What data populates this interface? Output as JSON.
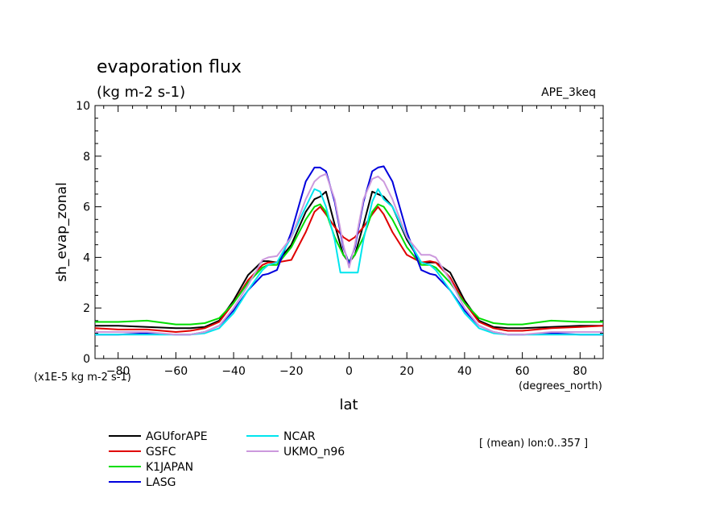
{
  "chart_data": {
    "type": "line",
    "title": "evaporation flux",
    "subtitle": "(kg m-2 s-1)",
    "experiment": "APE_3keq",
    "ylabel": "sh_evap_zonal",
    "xlabel": "lat",
    "xunits": "(degrees_north)",
    "yunits": "(x1E-5 kg m-2 s-1)",
    "note": "[ (mean) lon:0..357 ]",
    "xlim": [
      -88,
      88
    ],
    "ylim": [
      0,
      10
    ],
    "xticks": [
      -80,
      -60,
      -40,
      -20,
      0,
      20,
      40,
      60,
      80
    ],
    "yticks": [
      0,
      2,
      4,
      6,
      8,
      10
    ],
    "grid": false,
    "legend_position": "bottom-left",
    "series": [
      {
        "name": "AGUforAPE",
        "color": "#000000",
        "x": [
          -88,
          -80,
          -70,
          -60,
          -55,
          -50,
          -45,
          -40,
          -35,
          -30,
          -28,
          -25,
          -20,
          -15,
          -12,
          -10,
          -8,
          -5,
          -2,
          0,
          2,
          5,
          8,
          10,
          12,
          15,
          20,
          25,
          28,
          30,
          35,
          40,
          45,
          50,
          55,
          60,
          70,
          80,
          88
        ],
        "y": [
          1.3,
          1.3,
          1.25,
          1.2,
          1.2,
          1.25,
          1.5,
          2.3,
          3.3,
          3.85,
          3.85,
          3.8,
          4.5,
          5.8,
          6.3,
          6.4,
          6.6,
          5.3,
          4.1,
          3.8,
          4.1,
          5.3,
          6.6,
          6.5,
          6.4,
          6.0,
          4.7,
          3.8,
          3.8,
          3.8,
          3.4,
          2.3,
          1.5,
          1.25,
          1.2,
          1.2,
          1.25,
          1.3,
          1.3
        ]
      },
      {
        "name": "GSFC",
        "color": "#e00000",
        "x": [
          -88,
          -80,
          -70,
          -60,
          -55,
          -50,
          -45,
          -40,
          -35,
          -30,
          -28,
          -25,
          -20,
          -15,
          -12,
          -10,
          -8,
          -5,
          -2,
          0,
          2,
          5,
          8,
          10,
          12,
          15,
          20,
          25,
          28,
          30,
          35,
          40,
          45,
          50,
          55,
          60,
          70,
          80,
          88
        ],
        "y": [
          1.2,
          1.15,
          1.15,
          1.05,
          1.1,
          1.2,
          1.45,
          2.2,
          3.1,
          3.7,
          3.8,
          3.8,
          3.9,
          5.0,
          5.8,
          6.0,
          5.7,
          5.2,
          4.8,
          4.65,
          4.8,
          5.2,
          5.7,
          6.0,
          5.7,
          5.0,
          4.1,
          3.8,
          3.85,
          3.8,
          3.2,
          2.2,
          1.45,
          1.2,
          1.1,
          1.1,
          1.2,
          1.25,
          1.3
        ]
      },
      {
        "name": "K1JAPAN",
        "color": "#00dd00",
        "x": [
          -88,
          -80,
          -70,
          -60,
          -55,
          -50,
          -45,
          -40,
          -35,
          -30,
          -28,
          -25,
          -20,
          -15,
          -12,
          -10,
          -8,
          -5,
          -2,
          0,
          2,
          5,
          8,
          10,
          12,
          15,
          20,
          25,
          28,
          30,
          35,
          40,
          45,
          50,
          55,
          60,
          70,
          80,
          88
        ],
        "y": [
          1.45,
          1.45,
          1.5,
          1.35,
          1.35,
          1.4,
          1.6,
          2.2,
          3.0,
          3.6,
          3.7,
          3.7,
          4.4,
          5.5,
          6.0,
          6.1,
          5.8,
          4.8,
          4.1,
          3.85,
          4.1,
          4.8,
          5.8,
          6.1,
          6.0,
          5.5,
          4.4,
          3.7,
          3.7,
          3.6,
          3.0,
          2.2,
          1.6,
          1.4,
          1.35,
          1.35,
          1.5,
          1.45,
          1.45
        ]
      },
      {
        "name": "LASG",
        "color": "#0000dd",
        "x": [
          -88,
          -80,
          -70,
          -60,
          -55,
          -50,
          -45,
          -40,
          -35,
          -30,
          -28,
          -25,
          -20,
          -15,
          -12,
          -10,
          -8,
          -5,
          -2,
          0,
          2,
          5,
          8,
          10,
          12,
          15,
          20,
          25,
          28,
          30,
          35,
          40,
          45,
          50,
          55,
          60,
          70,
          80,
          88
        ],
        "y": [
          0.95,
          0.95,
          1.0,
          0.95,
          0.95,
          1.05,
          1.3,
          1.9,
          2.7,
          3.3,
          3.35,
          3.5,
          5.0,
          7.0,
          7.55,
          7.55,
          7.4,
          6.2,
          4.4,
          3.75,
          4.4,
          6.2,
          7.4,
          7.55,
          7.6,
          7.0,
          5.0,
          3.5,
          3.35,
          3.3,
          2.7,
          1.9,
          1.3,
          1.05,
          0.95,
          0.95,
          1.0,
          0.95,
          0.95
        ]
      },
      {
        "name": "NCAR",
        "color": "#00e5ee",
        "x": [
          -88,
          -80,
          -70,
          -60,
          -55,
          -50,
          -45,
          -40,
          -35,
          -30,
          -28,
          -25,
          -20,
          -15,
          -12,
          -10,
          -8,
          -5,
          -3,
          0,
          3,
          5,
          8,
          10,
          12,
          15,
          20,
          25,
          28,
          30,
          35,
          40,
          45,
          50,
          55,
          60,
          70,
          80,
          88
        ],
        "y": [
          0.95,
          0.95,
          0.95,
          0.95,
          0.95,
          1.0,
          1.2,
          1.8,
          2.7,
          3.5,
          3.7,
          3.8,
          4.8,
          6.0,
          6.7,
          6.6,
          6.0,
          4.7,
          3.4,
          3.4,
          3.4,
          4.7,
          6.2,
          6.7,
          6.3,
          6.0,
          4.8,
          3.8,
          3.7,
          3.5,
          2.7,
          1.8,
          1.2,
          1.0,
          0.95,
          0.95,
          0.95,
          0.95,
          0.95
        ]
      },
      {
        "name": "UKMO_n96",
        "color": "#cc99dd",
        "x": [
          -88,
          -80,
          -70,
          -60,
          -55,
          -50,
          -45,
          -40,
          -35,
          -30,
          -28,
          -25,
          -20,
          -15,
          -12,
          -10,
          -8,
          -5,
          -2,
          0,
          2,
          5,
          8,
          10,
          12,
          15,
          20,
          25,
          28,
          30,
          35,
          40,
          45,
          50,
          55,
          60,
          70,
          80,
          88
        ],
        "y": [
          1.05,
          1.05,
          1.05,
          0.95,
          0.95,
          1.05,
          1.3,
          2.0,
          2.9,
          3.9,
          4.0,
          4.05,
          4.8,
          6.3,
          7.0,
          7.2,
          7.3,
          6.3,
          4.5,
          3.6,
          4.5,
          6.3,
          7.1,
          7.2,
          7.0,
          6.3,
          4.8,
          4.1,
          4.1,
          4.0,
          3.1,
          2.0,
          1.3,
          1.05,
          0.95,
          0.95,
          1.05,
          1.05,
          1.05
        ]
      }
    ]
  }
}
